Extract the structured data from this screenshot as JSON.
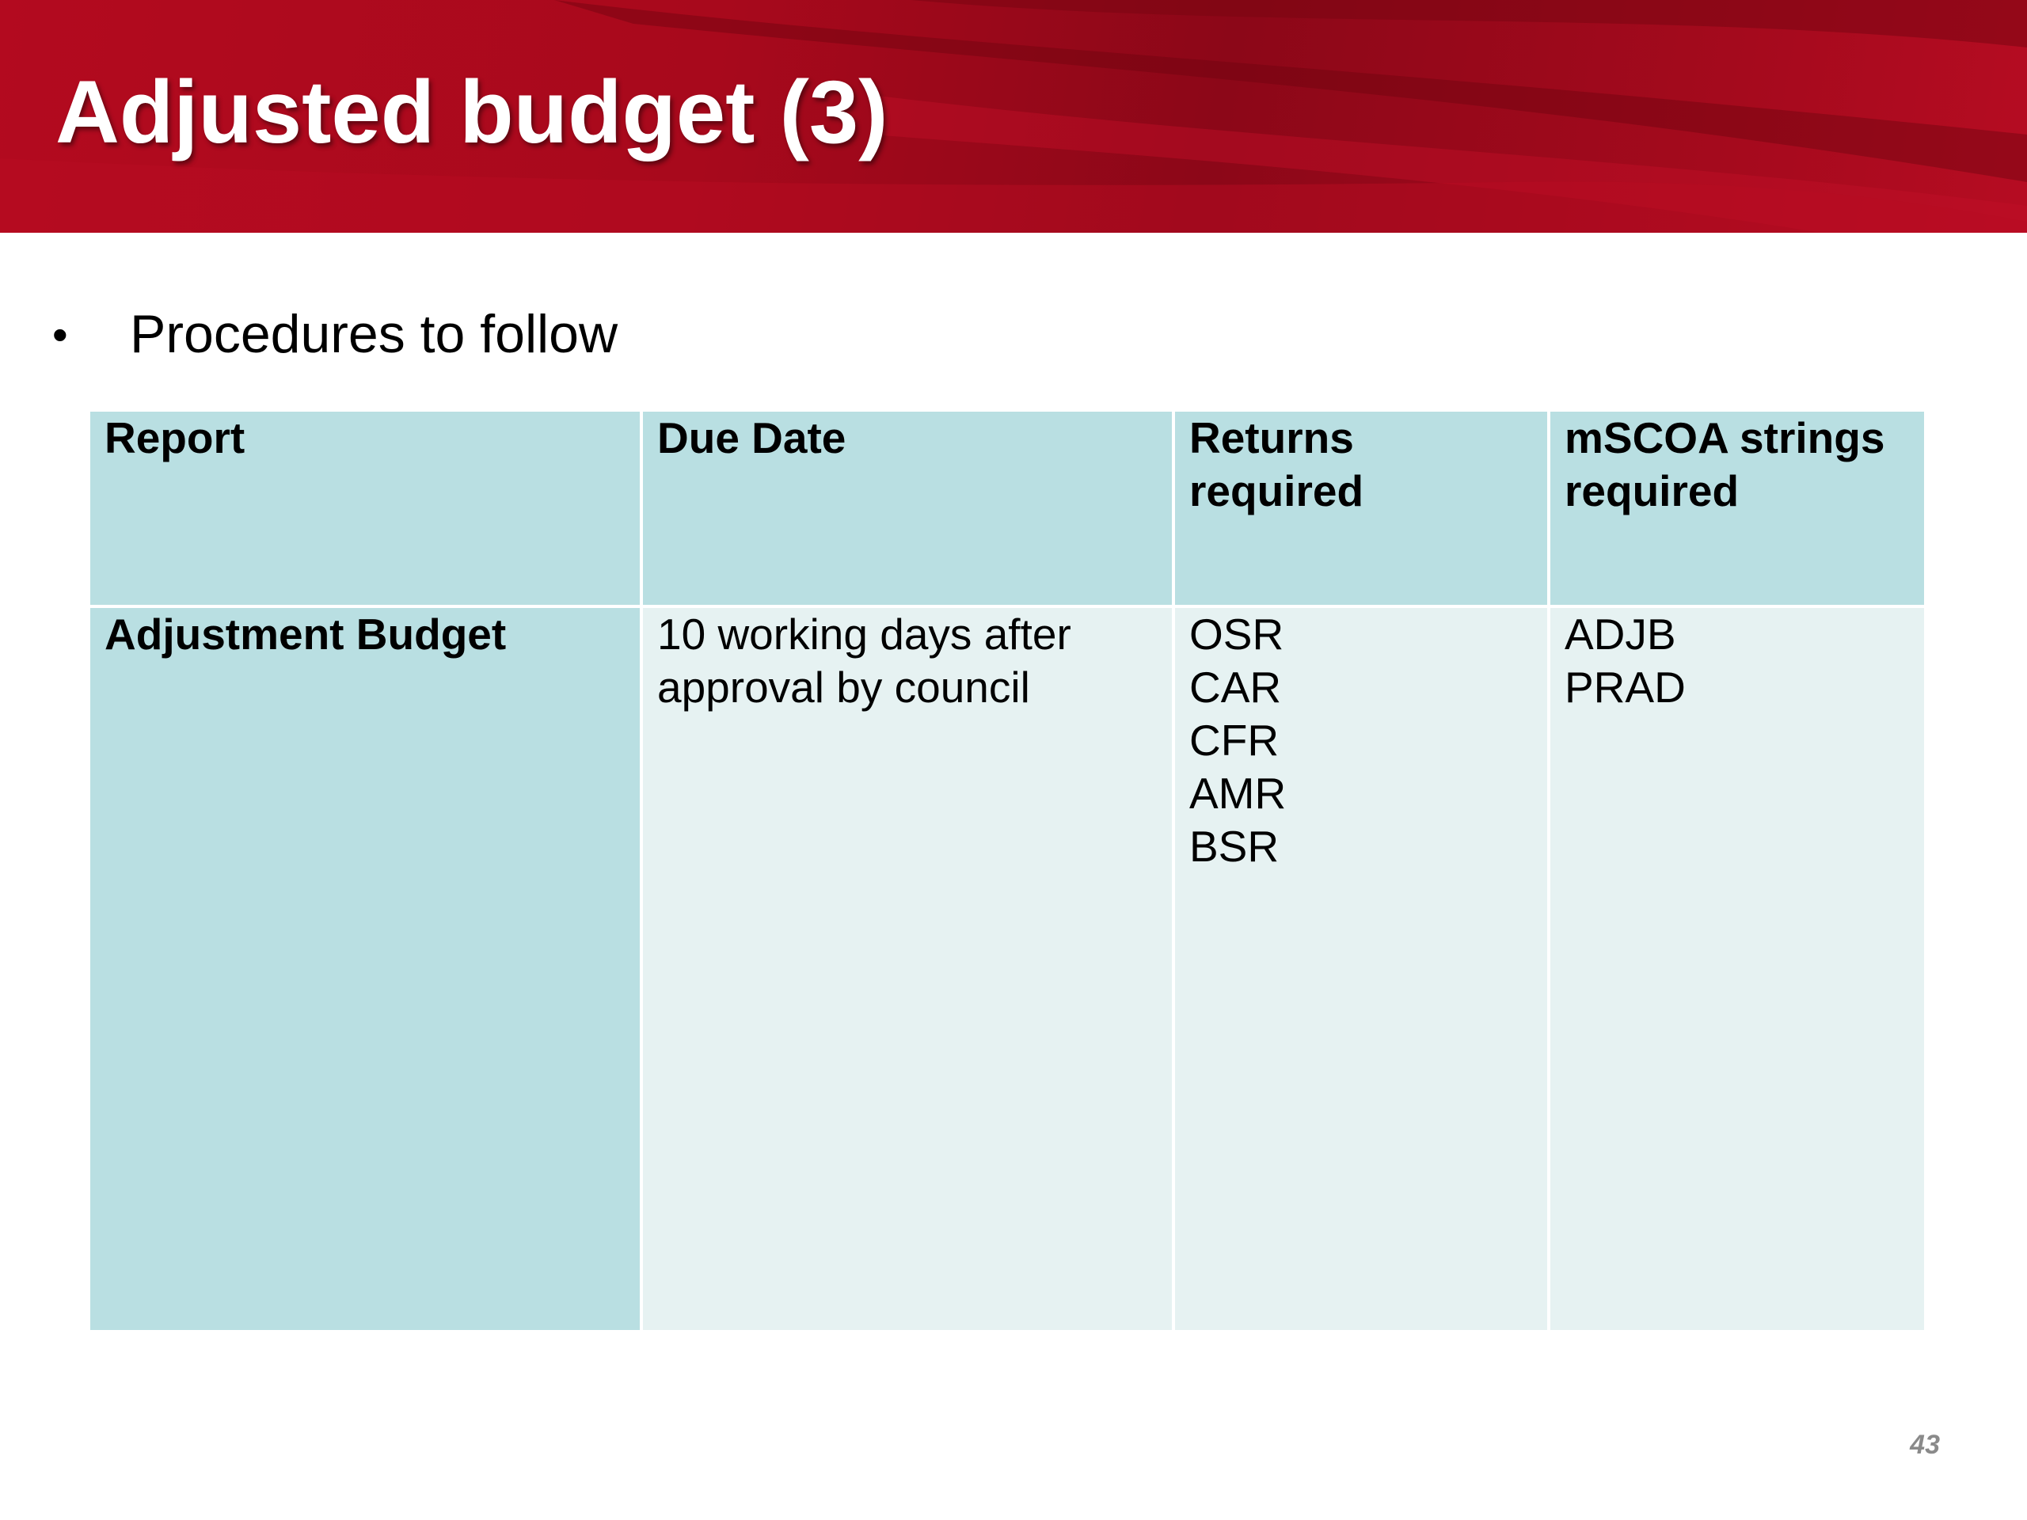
{
  "slide": {
    "title": "Adjusted budget (3)",
    "bullet": "Procedures to follow",
    "page_number": "43",
    "accent_color": "#b30a1f"
  },
  "table": {
    "headers": [
      "Report",
      "Due Date",
      "Returns required",
      "mSCOA strings required"
    ],
    "rows": [
      {
        "report": "Adjustment Budget",
        "due_date": "10 working days after approval by council",
        "returns": [
          "OSR",
          "CAR",
          "CFR",
          "AMR",
          "BSR"
        ],
        "mscoa_strings": [
          "ADJB",
          "PRAD"
        ]
      }
    ]
  }
}
